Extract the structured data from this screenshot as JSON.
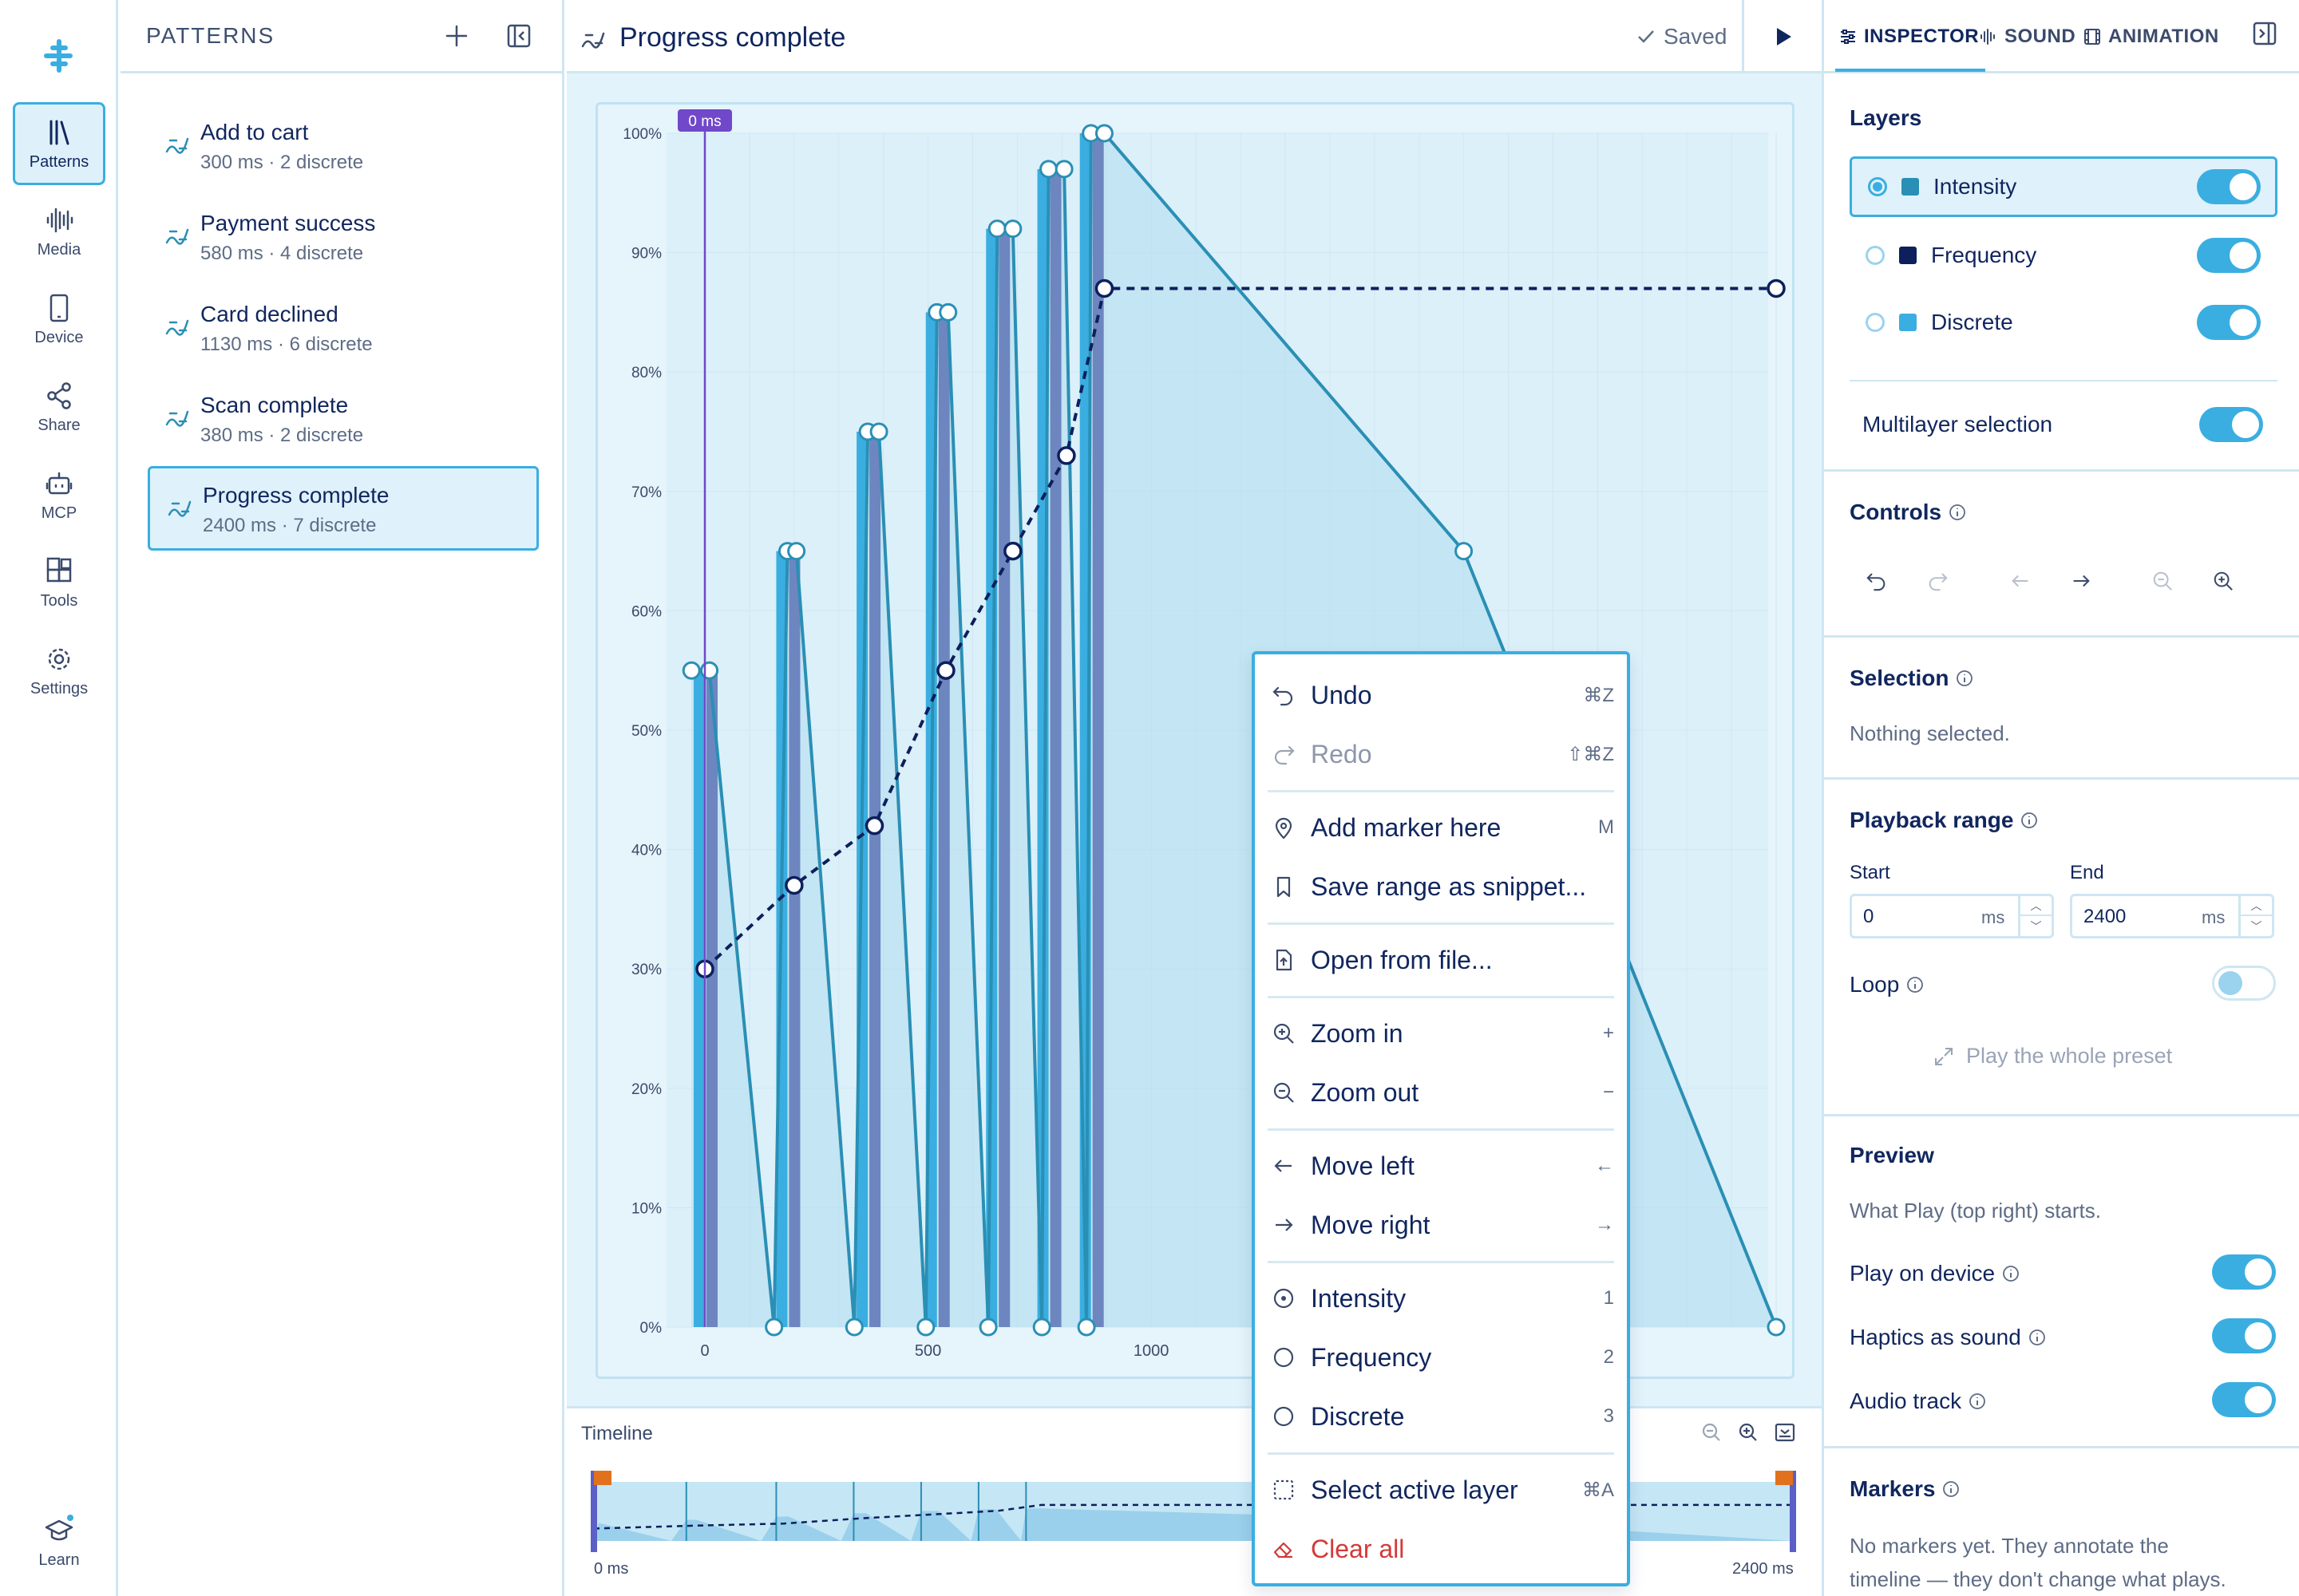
{
  "app": {
    "accent": "#3aaee0",
    "text_color": "#10265e"
  },
  "nav": {
    "items": [
      {
        "label": "Patterns",
        "icon": "library-icon",
        "active": true
      },
      {
        "label": "Media",
        "icon": "waveform-icon"
      },
      {
        "label": "Device",
        "icon": "phone-icon"
      },
      {
        "label": "Share",
        "icon": "share-icon"
      },
      {
        "label": "MCP",
        "icon": "robot-icon"
      },
      {
        "label": "Tools",
        "icon": "tools-icon"
      },
      {
        "label": "Settings",
        "icon": "gear-icon"
      }
    ],
    "learn_label": "Learn"
  },
  "patterns": {
    "title": "PATTERNS",
    "items": [
      {
        "name": "Add to cart",
        "meta": "300 ms · 2 discrete"
      },
      {
        "name": "Payment success",
        "meta": "580 ms · 4 discrete"
      },
      {
        "name": "Card declined",
        "meta": "1130 ms · 6 discrete"
      },
      {
        "name": "Scan complete",
        "meta": "380 ms · 2 discrete"
      },
      {
        "name": "Progress complete",
        "meta": "2400 ms · 7 discrete",
        "selected": true
      }
    ]
  },
  "editor": {
    "title": "Progress complete",
    "saved_label": "Saved",
    "playhead_label": "0 ms"
  },
  "chart_data": {
    "type": "line",
    "x_ticks": [
      "0",
      "500",
      "1000"
    ],
    "y_ticks": [
      "0%",
      "10%",
      "20%",
      "30%",
      "40%",
      "50%",
      "60%",
      "70%",
      "80%",
      "90%",
      "100%"
    ],
    "xlim": [
      0,
      2400
    ],
    "ylim": [
      0,
      100
    ],
    "colors": {
      "intensity": "#2a8fb5",
      "frequency": "#0d1f5c",
      "discrete": "#3aaee0",
      "discrete_alt": "#6d86c0"
    },
    "series": [
      {
        "layer": "intensity",
        "points": [
          [
            -30,
            55
          ],
          [
            10,
            55
          ],
          [
            155,
            0
          ],
          [
            185,
            65
          ],
          [
            205,
            65
          ],
          [
            335,
            0
          ],
          [
            365,
            75
          ],
          [
            390,
            75
          ],
          [
            495,
            0
          ],
          [
            520,
            85
          ],
          [
            545,
            85
          ],
          [
            635,
            0
          ],
          [
            655,
            92
          ],
          [
            690,
            92
          ],
          [
            755,
            0
          ],
          [
            770,
            97
          ],
          [
            805,
            97
          ],
          [
            855,
            0
          ],
          [
            865,
            100
          ],
          [
            895,
            100
          ],
          [
            1700,
            65
          ],
          [
            2400,
            0
          ]
        ]
      },
      {
        "layer": "frequency",
        "points": [
          [
            0,
            30
          ],
          [
            200,
            37
          ],
          [
            380,
            42
          ],
          [
            540,
            55
          ],
          [
            690,
            65
          ],
          [
            810,
            73
          ],
          [
            895,
            87
          ],
          [
            2400,
            87
          ]
        ]
      },
      {
        "layer": "discrete",
        "bars": [
          {
            "x": 0,
            "value": 55,
            "alt": 30
          },
          {
            "x": 185,
            "value": 65,
            "alt": 37
          },
          {
            "x": 365,
            "value": 75,
            "alt": 42
          },
          {
            "x": 520,
            "value": 85,
            "alt": 55
          },
          {
            "x": 655,
            "value": 92,
            "alt": 65
          },
          {
            "x": 770,
            "value": 97,
            "alt": 73
          },
          {
            "x": 865,
            "value": 100,
            "alt": 87
          }
        ]
      }
    ]
  },
  "timeline": {
    "label": "Timeline",
    "start_label": "0 ms",
    "end_label": "2400 ms"
  },
  "context_menu": {
    "items": [
      {
        "label": "Undo",
        "shortcut": "⌘Z",
        "icon": "undo-icon"
      },
      {
        "label": "Redo",
        "shortcut": "⇧⌘Z",
        "icon": "redo-icon",
        "disabled": true
      },
      {
        "label": "Add marker here",
        "shortcut": "M",
        "icon": "pin-icon"
      },
      {
        "label": "Save range as snippet...",
        "shortcut": "",
        "icon": "bookmark-icon"
      },
      {
        "label": "Open from file...",
        "shortcut": "",
        "icon": "file-icon"
      },
      {
        "label": "Zoom in",
        "shortcut": "+",
        "icon": "zoom-in-icon"
      },
      {
        "label": "Zoom out",
        "shortcut": "−",
        "icon": "zoom-out-icon"
      },
      {
        "label": "Move left",
        "shortcut": "←",
        "icon": "arrow-left-icon"
      },
      {
        "label": "Move right",
        "shortcut": "→",
        "icon": "arrow-right-icon"
      },
      {
        "label": "Intensity",
        "shortcut": "1",
        "icon": "radio-icon"
      },
      {
        "label": "Frequency",
        "shortcut": "2",
        "icon": "radio-icon"
      },
      {
        "label": "Discrete",
        "shortcut": "3",
        "icon": "radio-icon"
      },
      {
        "label": "Select active layer",
        "shortcut": "⌘A",
        "icon": "select-icon"
      },
      {
        "label": "Clear all",
        "shortcut": "",
        "icon": "eraser-icon",
        "danger": true
      }
    ]
  },
  "inspector": {
    "tabs": [
      "INSPECTOR",
      "SOUND",
      "ANIMATION"
    ],
    "layers": {
      "title": "Layers",
      "items": [
        {
          "name": "Intensity",
          "color": "#2a8fb5",
          "active": true
        },
        {
          "name": "Frequency",
          "color": "#0d1f5c"
        },
        {
          "name": "Discrete",
          "color": "#3aaee0"
        }
      ],
      "multilayer_label": "Multilayer selection"
    },
    "controls": {
      "title": "Controls"
    },
    "selection": {
      "title": "Selection",
      "empty": "Nothing selected."
    },
    "playback": {
      "title": "Playback range",
      "start_label": "Start",
      "end_label": "End",
      "start_value": "0",
      "end_value": "2400",
      "unit": "ms",
      "loop_label": "Loop",
      "play_whole": "Play the whole preset"
    },
    "preview": {
      "title": "Preview",
      "desc": "What Play (top right) starts.",
      "play_on_device": "Play on device",
      "haptics_as_sound": "Haptics as sound",
      "audio_track": "Audio track"
    },
    "markers": {
      "title": "Markers",
      "desc_line1": "No markers yet. They annotate the",
      "desc_line2": "timeline — they don't change what plays."
    }
  }
}
